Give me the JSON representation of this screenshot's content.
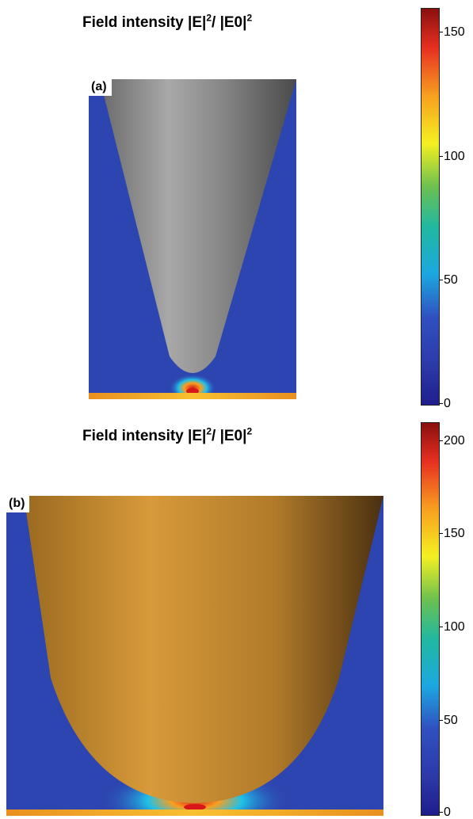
{
  "figure": {
    "panel_a": {
      "label": "(a)",
      "title_main": "Field intensity |E|",
      "title_exp1": "2",
      "title_mid": "/ |E0|",
      "title_exp2": "2",
      "tip_color": "gray"
    },
    "panel_b": {
      "label": "(b)",
      "title_main": "Field intensity |E|",
      "title_exp1": "2",
      "title_mid": "/ |E0|",
      "title_exp2": "2",
      "tip_color": "gold"
    }
  },
  "chart_data": [
    {
      "type": "heatmap",
      "panel": "(a)",
      "title": "Field intensity |E|2/ |E0|2",
      "colorbar": {
        "range": [
          0,
          160
        ],
        "ticks": [
          0,
          50,
          100,
          150
        ],
        "tick_labels": [
          "0",
          "50",
          "100",
          "150"
        ],
        "colormap": "jet"
      },
      "background_level": 10,
      "peak_level": 160
    },
    {
      "type": "heatmap",
      "panel": "(b)",
      "title": "Field intensity |E|2/ |E0|2",
      "colorbar": {
        "range": [
          0,
          210
        ],
        "ticks": [
          0,
          50,
          100,
          150,
          200
        ],
        "tick_labels": [
          "0",
          "50",
          "100",
          "150",
          "200"
        ],
        "colormap": "jet"
      },
      "background_level": 15,
      "peak_level": 210
    }
  ],
  "colors": {
    "field_background": "#2d45b0",
    "substrate": "#f0a020",
    "jet_low": "#1a1a8a",
    "jet_high": "#8a1010"
  }
}
